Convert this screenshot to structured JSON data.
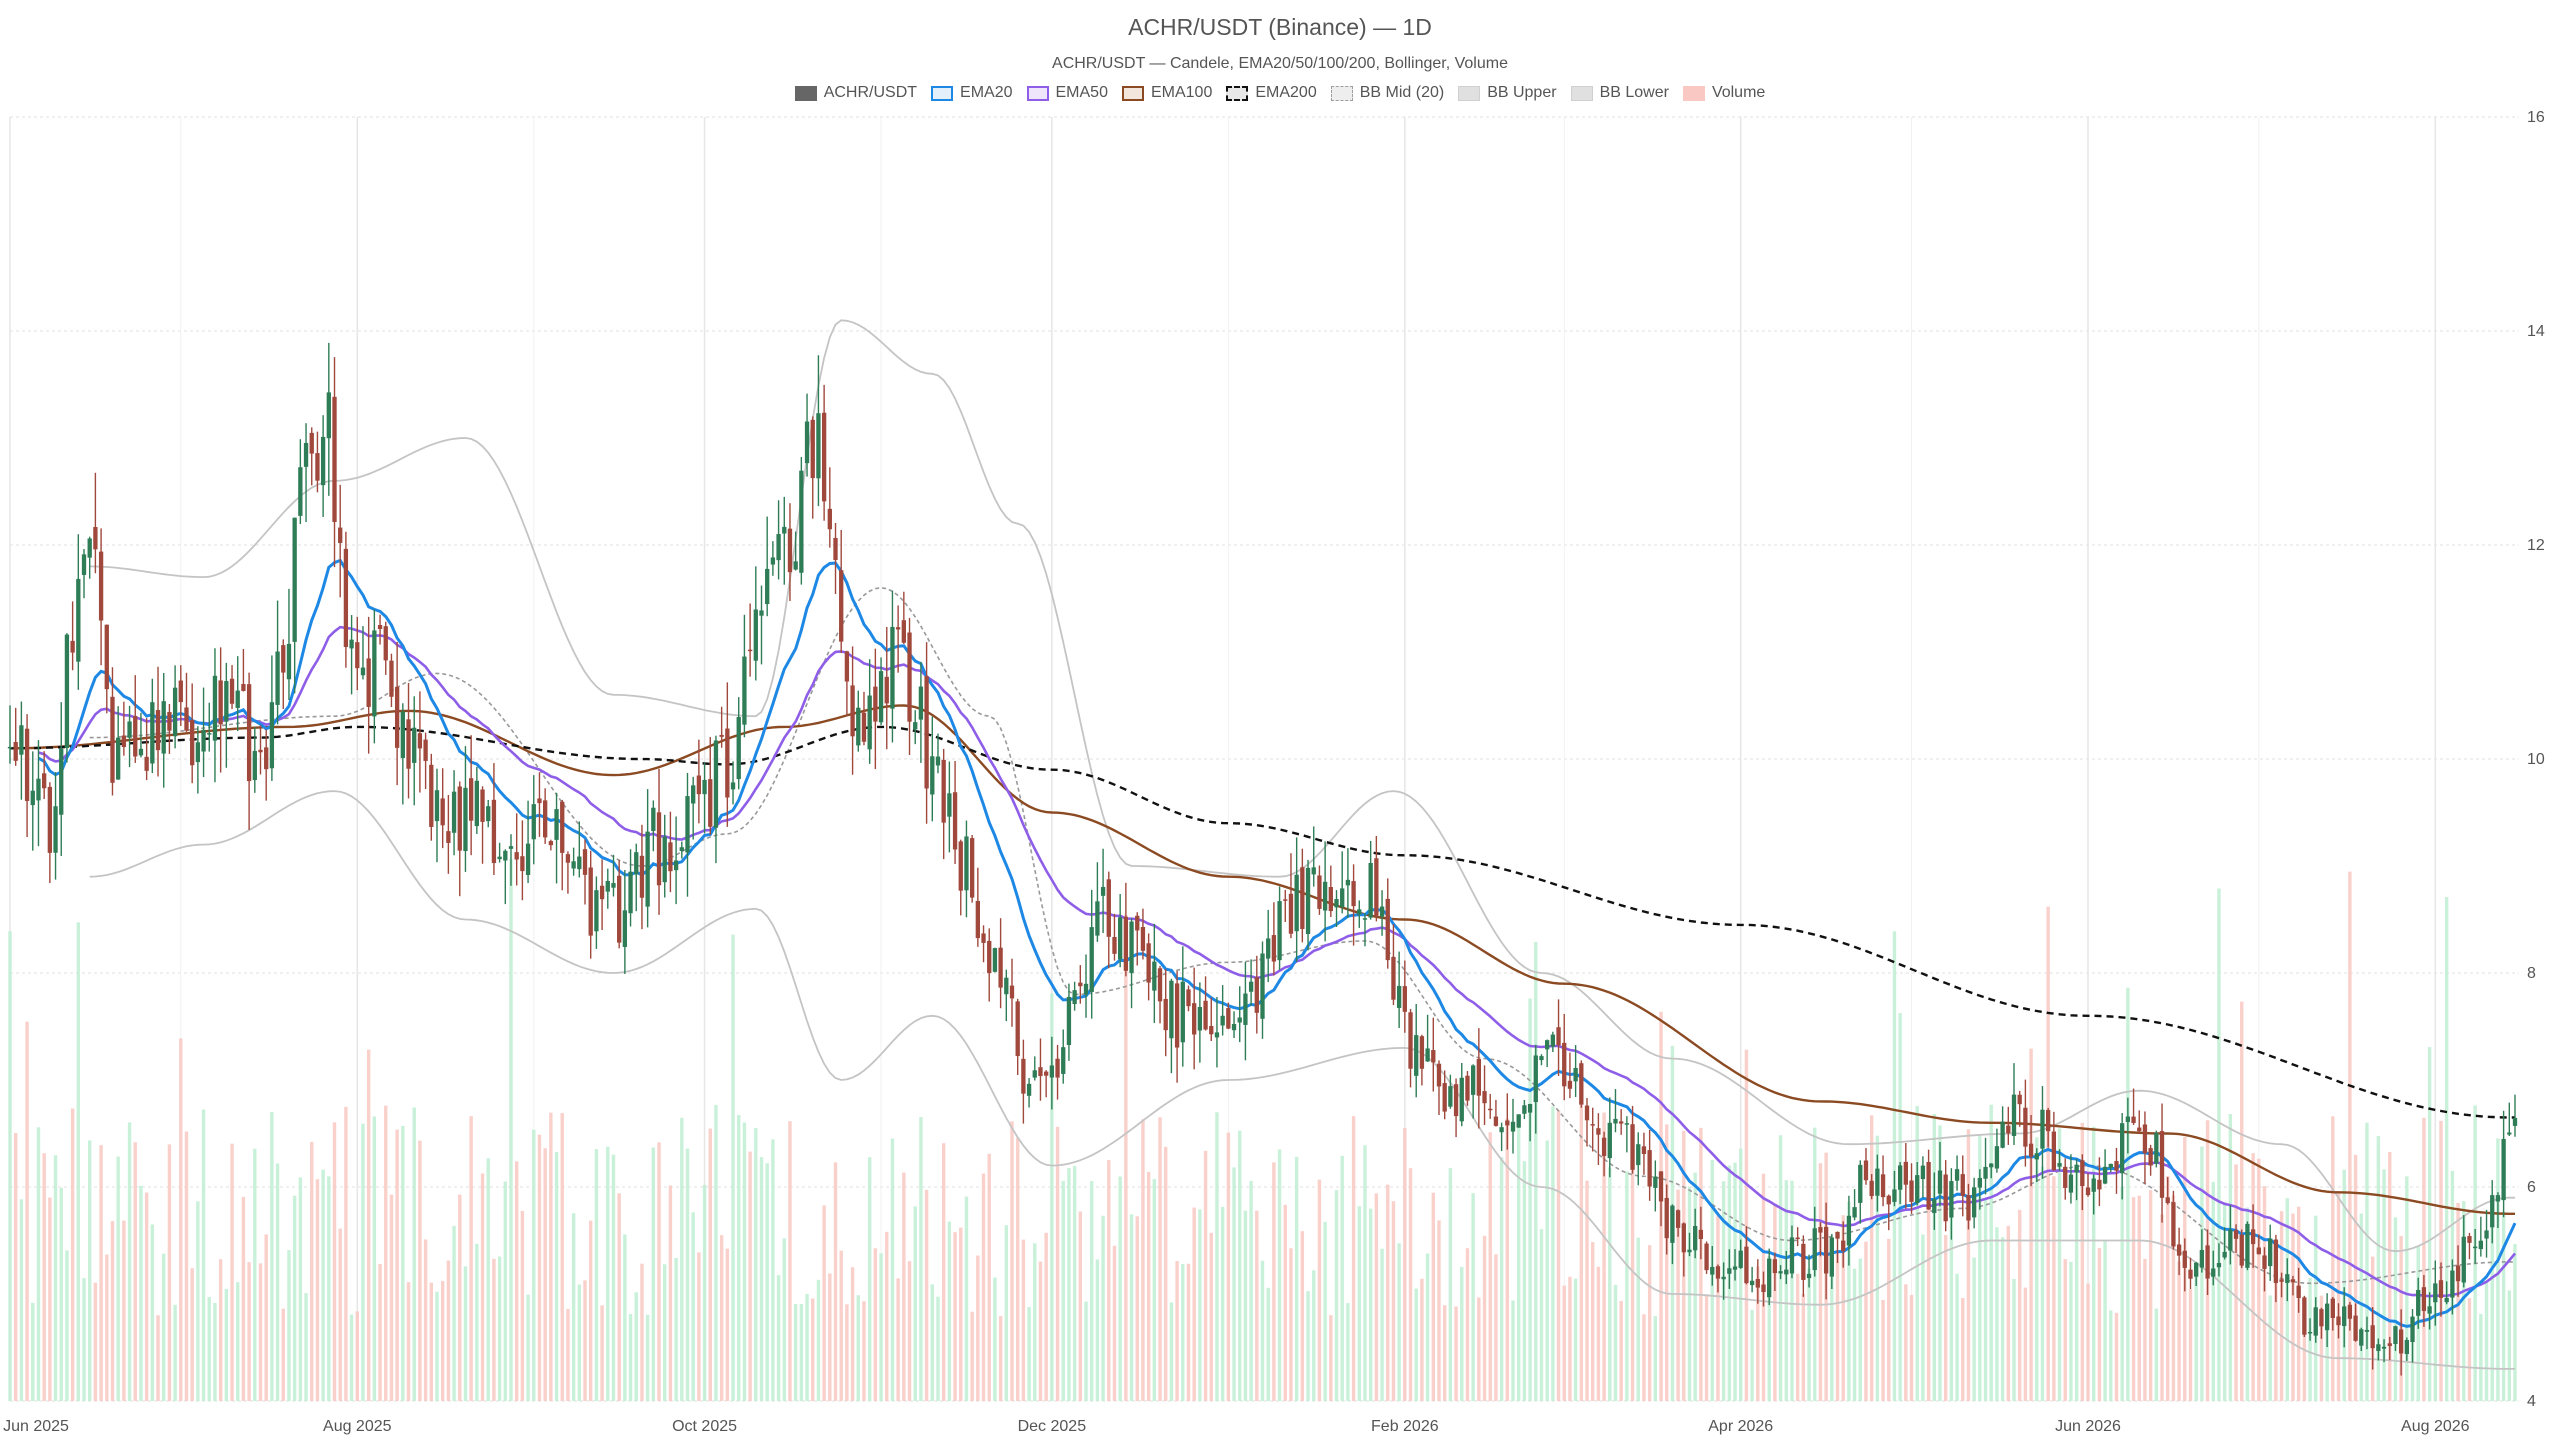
{
  "title": "ACHR/USDT (Binance) — 1D",
  "subtitle": "ACHR/USDT — Candele, EMA20/50/100/200, Bollinger, Volume",
  "legend": [
    {
      "label": "ACHR/USDT",
      "color": "#666666",
      "style": "fill"
    },
    {
      "label": "EMA20",
      "color": "#1e88e5",
      "style": "line"
    },
    {
      "label": "EMA50",
      "color": "#8e5ee8",
      "style": "line"
    },
    {
      "label": "EMA100",
      "color": "#8b4a22",
      "style": "line"
    },
    {
      "label": "EMA200",
      "color": "#111111",
      "style": "dashed"
    },
    {
      "label": "BB Mid (20)",
      "color": "#9e9e9e",
      "style": "dotted"
    },
    {
      "label": "BB Upper",
      "color": "#bdbdbd",
      "style": "fill"
    },
    {
      "label": "BB Lower",
      "color": "#bdbdbd",
      "style": "fill"
    },
    {
      "label": "Volume",
      "color": "#f4a9a0",
      "style": "fill"
    }
  ],
  "chart_data": {
    "type": "candlestick",
    "x_ticks": [
      "Jun 2025",
      "Aug 2025",
      "Oct 2025",
      "Dec 2025",
      "Feb 2026",
      "Apr 2026",
      "Jun 2026",
      "Aug 2026"
    ],
    "y_ticks": [
      4,
      6,
      8,
      10,
      12,
      14,
      16
    ],
    "ylim": [
      4,
      16
    ],
    "xlim": [
      "2025-06-01",
      "2026-08-15"
    ],
    "grid": true,
    "legend_position": "top-center",
    "colors": {
      "up": "#2e7d57",
      "down": "#a0483c",
      "volume_up": "#bfeed3",
      "volume_down": "#f9c8c2"
    },
    "close_anchors": [
      [
        "2025-06-01",
        10.2
      ],
      [
        "2025-06-08",
        9.5
      ],
      [
        "2025-06-14",
        12.0
      ],
      [
        "2025-06-20",
        10.0
      ],
      [
        "2025-07-05",
        10.4
      ],
      [
        "2025-07-15",
        10.2
      ],
      [
        "2025-07-26",
        13.2
      ],
      [
        "2025-08-01",
        11.0
      ],
      [
        "2025-08-15",
        9.6
      ],
      [
        "2025-09-05",
        9.2
      ],
      [
        "2025-09-15",
        8.5
      ],
      [
        "2025-09-25",
        9.3
      ],
      [
        "2025-10-03",
        9.8
      ],
      [
        "2025-10-12",
        11.5
      ],
      [
        "2025-10-20",
        12.8
      ],
      [
        "2025-10-28",
        10.5
      ],
      [
        "2025-11-05",
        10.9
      ],
      [
        "2025-11-12",
        9.6
      ],
      [
        "2025-11-20",
        8.2
      ],
      [
        "2025-11-28",
        6.8
      ],
      [
        "2025-12-10",
        8.5
      ],
      [
        "2025-12-25",
        7.6
      ],
      [
        "2026-01-05",
        7.7
      ],
      [
        "2026-01-12",
        8.6
      ],
      [
        "2026-01-25",
        8.9
      ],
      [
        "2026-02-05",
        7.0
      ],
      [
        "2026-02-20",
        6.8
      ],
      [
        "2026-03-01",
        7.2
      ],
      [
        "2026-03-10",
        6.4
      ],
      [
        "2026-03-25",
        5.4
      ],
      [
        "2026-04-05",
        5.2
      ],
      [
        "2026-04-15",
        5.4
      ],
      [
        "2026-04-25",
        6.1
      ],
      [
        "2026-05-10",
        5.9
      ],
      [
        "2026-05-20",
        6.6
      ],
      [
        "2026-06-01",
        6.0
      ],
      [
        "2026-06-10",
        6.6
      ],
      [
        "2026-06-20",
        5.2
      ],
      [
        "2026-07-01",
        5.5
      ],
      [
        "2026-07-10",
        4.8
      ],
      [
        "2026-07-25",
        4.6
      ],
      [
        "2026-08-01",
        5.0
      ],
      [
        "2026-08-09",
        5.6
      ],
      [
        "2026-08-14",
        6.4
      ]
    ],
    "ema200_anchors": [
      [
        "2025-06-01",
        10.1
      ],
      [
        "2025-07-15",
        10.2
      ],
      [
        "2025-08-01",
        10.3
      ],
      [
        "2025-09-20",
        10.0
      ],
      [
        "2025-10-05",
        9.95
      ],
      [
        "2025-11-01",
        10.3
      ],
      [
        "2025-12-01",
        9.9
      ],
      [
        "2026-01-01",
        9.4
      ],
      [
        "2026-02-01",
        9.1
      ],
      [
        "2026-04-01",
        8.45
      ],
      [
        "2026-06-01",
        7.6
      ],
      [
        "2026-08-14",
        6.65
      ]
    ],
    "ema100_anchors": [
      [
        "2025-06-01",
        10.1
      ],
      [
        "2025-07-20",
        10.3
      ],
      [
        "2025-08-10",
        10.45
      ],
      [
        "2025-09-15",
        9.85
      ],
      [
        "2025-10-15",
        10.3
      ],
      [
        "2025-11-05",
        10.5
      ],
      [
        "2025-12-01",
        9.5
      ],
      [
        "2026-01-01",
        8.9
      ],
      [
        "2026-02-01",
        8.5
      ],
      [
        "2026-03-01",
        7.9
      ],
      [
        "2026-04-15",
        6.8
      ],
      [
        "2026-05-15",
        6.6
      ],
      [
        "2026-06-15",
        6.5
      ],
      [
        "2026-07-15",
        5.95
      ],
      [
        "2026-08-14",
        5.75
      ]
    ],
    "bb_mid_anchors": [
      [
        "2025-06-15",
        10.2
      ],
      [
        "2025-07-28",
        10.4
      ],
      [
        "2025-08-15",
        10.8
      ],
      [
        "2025-09-20",
        9.0
      ],
      [
        "2025-10-05",
        9.3
      ],
      [
        "2025-11-01",
        11.6
      ],
      [
        "2025-11-20",
        10.4
      ],
      [
        "2025-12-05",
        7.8
      ],
      [
        "2026-01-01",
        8.1
      ],
      [
        "2026-01-25",
        8.3
      ],
      [
        "2026-02-15",
        7.2
      ],
      [
        "2026-03-15",
        6.1
      ],
      [
        "2026-04-10",
        5.5
      ],
      [
        "2026-05-10",
        5.8
      ],
      [
        "2026-06-01",
        6.2
      ],
      [
        "2026-07-10",
        5.1
      ],
      [
        "2026-08-14",
        5.3
      ]
    ],
    "bb_upper_anchors": [
      [
        "2025-06-15",
        11.8
      ],
      [
        "2025-07-05",
        11.7
      ],
      [
        "2025-07-28",
        12.6
      ],
      [
        "2025-08-20",
        13.0
      ],
      [
        "2025-09-15",
        10.6
      ],
      [
        "2025-10-10",
        10.4
      ],
      [
        "2025-10-25",
        14.1
      ],
      [
        "2025-11-10",
        13.6
      ],
      [
        "2025-11-25",
        12.2
      ],
      [
        "2025-12-15",
        9.0
      ],
      [
        "2026-01-10",
        8.9
      ],
      [
        "2026-01-30",
        9.7
      ],
      [
        "2026-02-25",
        8.0
      ],
      [
        "2026-03-20",
        7.2
      ],
      [
        "2026-04-20",
        6.4
      ],
      [
        "2026-05-20",
        6.5
      ],
      [
        "2026-06-10",
        6.9
      ],
      [
        "2026-07-05",
        6.4
      ],
      [
        "2026-07-25",
        5.4
      ],
      [
        "2026-08-14",
        5.9
      ]
    ],
    "bb_lower_anchors": [
      [
        "2025-06-15",
        8.9
      ],
      [
        "2025-07-05",
        9.2
      ],
      [
        "2025-07-28",
        9.7
      ],
      [
        "2025-08-20",
        8.5
      ],
      [
        "2025-09-15",
        8.0
      ],
      [
        "2025-10-10",
        8.6
      ],
      [
        "2025-10-25",
        7.0
      ],
      [
        "2025-11-10",
        7.6
      ],
      [
        "2025-12-01",
        6.2
      ],
      [
        "2026-01-01",
        7.0
      ],
      [
        "2026-02-01",
        7.3
      ],
      [
        "2026-02-25",
        6.0
      ],
      [
        "2026-03-20",
        5.0
      ],
      [
        "2026-04-15",
        4.9
      ],
      [
        "2026-05-15",
        5.5
      ],
      [
        "2026-06-10",
        5.5
      ],
      [
        "2026-07-15",
        4.4
      ],
      [
        "2026-08-14",
        4.3
      ]
    ]
  }
}
